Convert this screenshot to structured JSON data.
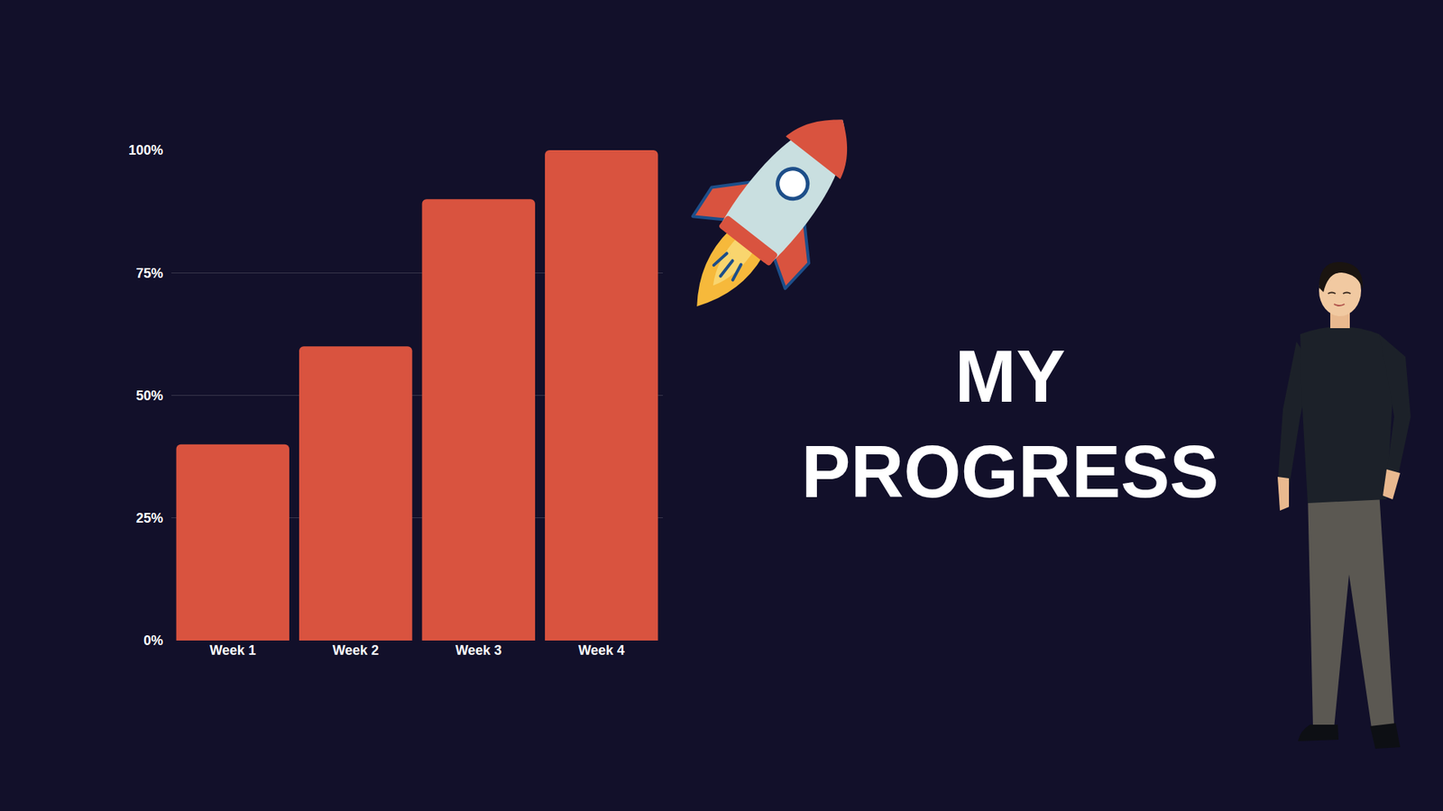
{
  "chart_data": {
    "type": "bar",
    "title": "MY PROGRESS",
    "categories": [
      "Week 1",
      "Week 2",
      "Week 3",
      "Week 4"
    ],
    "values": [
      40,
      60,
      90,
      100
    ],
    "color": "#d9533f",
    "ylim": [
      0,
      100
    ],
    "yticks": [
      {
        "value": 0,
        "label": "0%"
      },
      {
        "value": 25,
        "label": "25%"
      },
      {
        "value": 50,
        "label": "50%"
      },
      {
        "value": 75,
        "label": "75%"
      },
      {
        "value": 100,
        "label": "100%"
      }
    ],
    "grid": true
  }
}
